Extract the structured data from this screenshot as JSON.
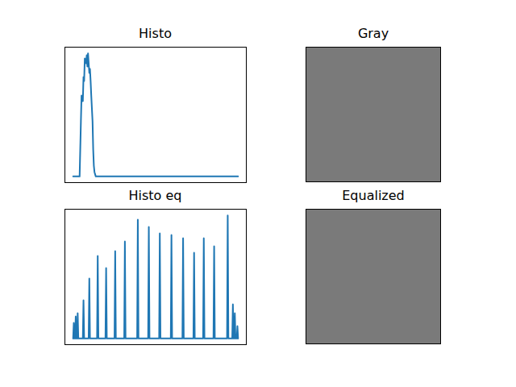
{
  "chart_data": [
    {
      "type": "line",
      "title": "Histo",
      "xlim": [
        -12.75,
        267.75
      ],
      "ylim": [
        -120,
        2520
      ],
      "tick_labels": false,
      "series": [
        {
          "color": "#1f77b4",
          "x": [
            0,
            10,
            12,
            13,
            15,
            16,
            17,
            18,
            20,
            21,
            22,
            23,
            25,
            26,
            27,
            28,
            30,
            31,
            32,
            33,
            35,
            255
          ],
          "values": [
            0,
            0,
            1075,
            1577,
            1467,
            1939,
            1860,
            2300,
            2205,
            2363,
            2143,
            2400,
            2017,
            2096,
            1860,
            1577,
            1075,
            525,
            210,
            85,
            0,
            0
          ]
        }
      ]
    },
    {
      "type": "image",
      "title": "Gray"
    },
    {
      "type": "line",
      "title": "Histo eq",
      "xlim": [
        -12.75,
        267.75
      ],
      "ylim": [
        -120,
        2520
      ],
      "tick_labels": false,
      "series": [
        {
          "color": "#1f77b4",
          "x": [
            0,
            1,
            2,
            3,
            4,
            5,
            6,
            7,
            8,
            15,
            16,
            17,
            24,
            25,
            26,
            37,
            38,
            39,
            50,
            51,
            52,
            64,
            65,
            66,
            79,
            80,
            81,
            99,
            100,
            101,
            116,
            117,
            118,
            133,
            134,
            135,
            151,
            152,
            153,
            169,
            170,
            171,
            186,
            187,
            188,
            201,
            202,
            203,
            217,
            218,
            219,
            238,
            239,
            240,
            246,
            247,
            248,
            249,
            250,
            251,
            253,
            254,
            255
          ],
          "values": [
            0,
            305,
            0,
            0,
            430,
            0,
            0,
            493,
            0,
            0,
            745,
            0,
            0,
            1169,
            0,
            0,
            1609,
            0,
            0,
            1373,
            0,
            0,
            1703,
            0,
            0,
            1891,
            0,
            0,
            2316,
            0,
            0,
            2174,
            0,
            0,
            2049,
            0,
            0,
            2017,
            0,
            0,
            1954,
            0,
            0,
            1672,
            0,
            0,
            1954,
            0,
            0,
            1797,
            0,
            0,
            2400,
            0,
            0,
            666,
            0,
            0,
            493,
            0,
            0,
            242,
            0
          ]
        }
      ]
    },
    {
      "type": "image",
      "title": "Equalized"
    }
  ]
}
